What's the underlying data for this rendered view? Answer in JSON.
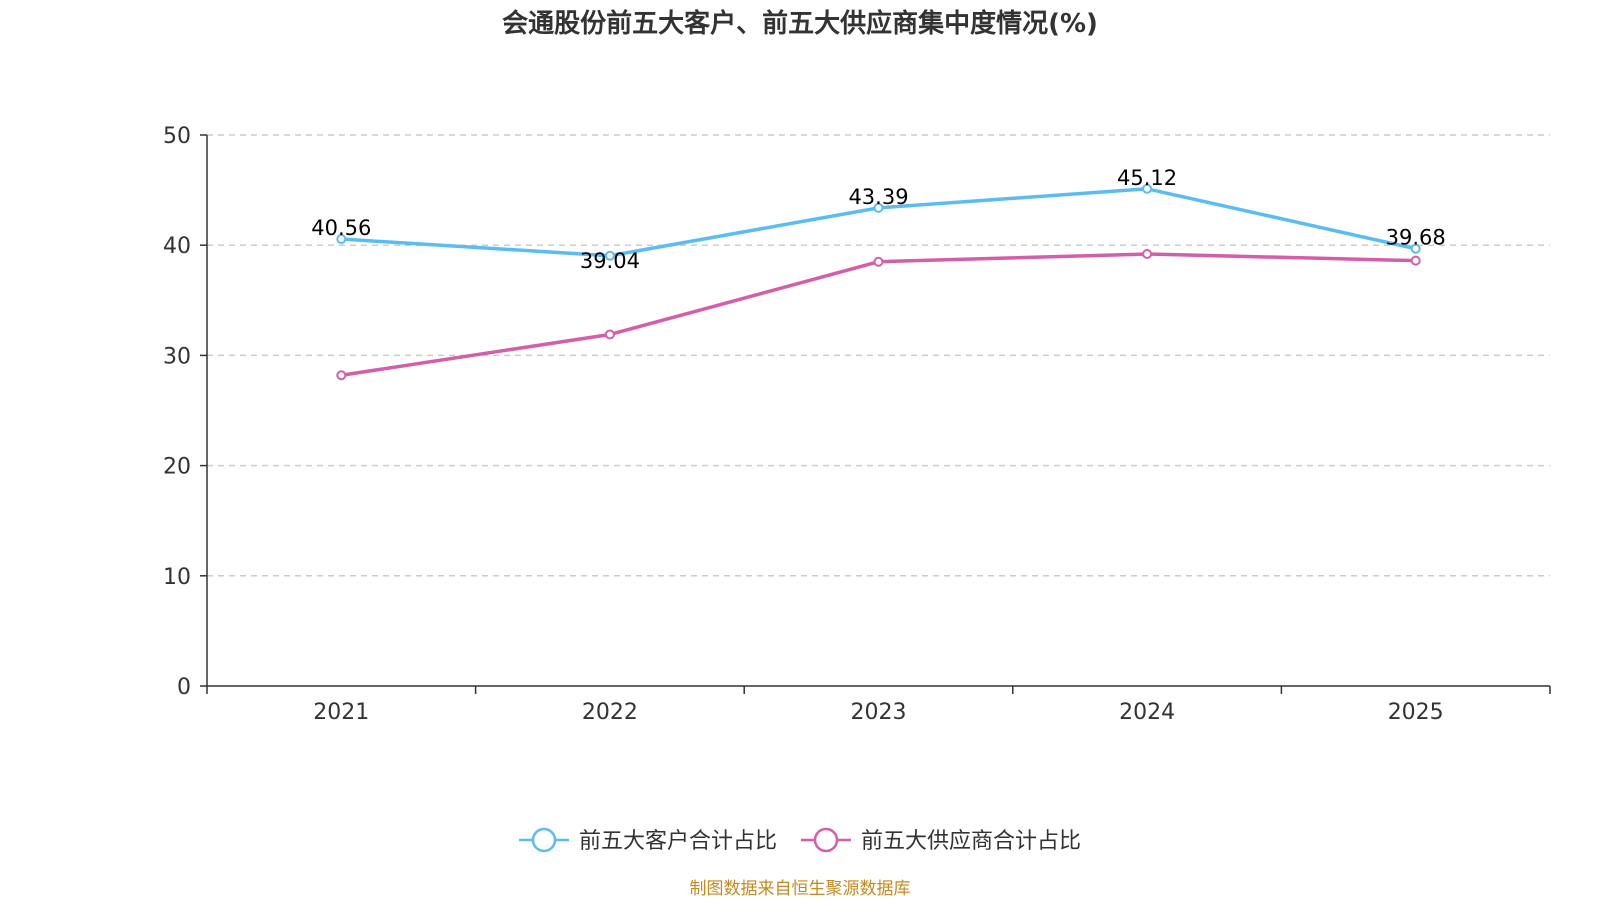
{
  "colors": {
    "customer": "#5bbcf1",
    "supplier": "#d45ea8",
    "grid": "#cccccc",
    "axis": "#333333",
    "source": "#c58a1e"
  },
  "source_note": "制图数据来自恒生聚源数据库",
  "chart_data": {
    "type": "line",
    "title": "会通股份前五大客户、前五大供应商集中度情况(%)",
    "xlabel": "",
    "ylabel": "",
    "categories": [
      "2021",
      "2022",
      "2023",
      "2024",
      "2025"
    ],
    "ylim": [
      0,
      50
    ],
    "yticks": [
      0,
      10,
      20,
      30,
      40,
      50
    ],
    "grid": true,
    "legend_position": "bottom-center",
    "series": [
      {
        "name": "前五大客户合计占比",
        "color": "#5bbcf1",
        "values": [
          40.56,
          39.04,
          43.39,
          45.12,
          39.68
        ],
        "labels": [
          "40.56",
          "39.04",
          "43.39",
          "45.12",
          "39.68"
        ],
        "show_labels": true
      },
      {
        "name": "前五大供应商合计占比",
        "color": "#d45ea8",
        "values": [
          28.2,
          31.9,
          38.5,
          39.2,
          38.6
        ],
        "labels": [],
        "show_labels": false
      }
    ]
  }
}
